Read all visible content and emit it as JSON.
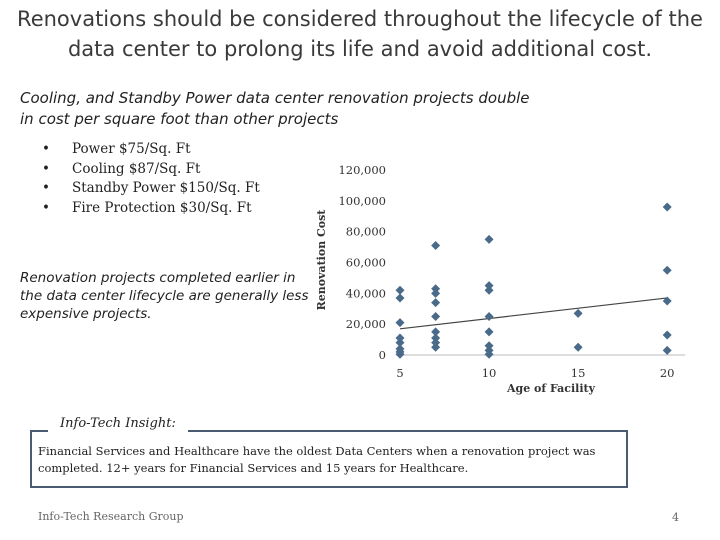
{
  "slide": {
    "title": "Renovations should be considered throughout the lifecycle of the data center to prolong its life and avoid additional cost.",
    "subtitle": "Cooling, and Standby Power data center renovation projects double in cost per square foot than other projects",
    "bullets": [
      "Power $75/Sq. Ft",
      "Cooling $87/Sq. Ft",
      "Standby Power $150/Sq. Ft",
      " Fire Protection $30/Sq. Ft"
    ],
    "note": "Renovation projects completed earlier in the data center lifecycle are generally less expensive projects.",
    "insight_label": "Info-Tech Insight:",
    "insight_text": "Financial Services and Healthcare have the oldest Data Centers when a renovation project was completed. 12+ years for Financial Services and 15 years for Healthcare.",
    "footer": "Info-Tech Research Group",
    "page_number": "4"
  },
  "chart_data": {
    "type": "scatter",
    "title": "",
    "xlabel": "Age of Facility",
    "ylabel": "Renovation Cost",
    "x_ticks": [
      5,
      10,
      15,
      20
    ],
    "y_ticks": [
      0,
      20000,
      40000,
      60000,
      80000,
      100000,
      120000
    ],
    "y_tick_labels": [
      "0",
      "20,000",
      "40,000",
      "60,000",
      "80,000",
      "100,000",
      "120,000"
    ],
    "xlim": [
      5,
      21
    ],
    "ylim": [
      0,
      120000
    ],
    "grid": false,
    "marker_color": "#4a6a8a",
    "trendline_color": "#444444",
    "points": [
      {
        "x": 5,
        "y": 42000
      },
      {
        "x": 5,
        "y": 37000
      },
      {
        "x": 5,
        "y": 21000
      },
      {
        "x": 5,
        "y": 11000
      },
      {
        "x": 5,
        "y": 8000
      },
      {
        "x": 5,
        "y": 4000
      },
      {
        "x": 5,
        "y": 2000
      },
      {
        "x": 5,
        "y": 500
      },
      {
        "x": 7,
        "y": 71000
      },
      {
        "x": 7,
        "y": 43000
      },
      {
        "x": 7,
        "y": 40000
      },
      {
        "x": 7,
        "y": 34000
      },
      {
        "x": 7,
        "y": 25000
      },
      {
        "x": 7,
        "y": 15000
      },
      {
        "x": 7,
        "y": 11000
      },
      {
        "x": 7,
        "y": 8000
      },
      {
        "x": 7,
        "y": 5000
      },
      {
        "x": 10,
        "y": 75000
      },
      {
        "x": 10,
        "y": 45000
      },
      {
        "x": 10,
        "y": 42000
      },
      {
        "x": 10,
        "y": 25000
      },
      {
        "x": 10,
        "y": 15000
      },
      {
        "x": 10,
        "y": 6000
      },
      {
        "x": 10,
        "y": 3000
      },
      {
        "x": 10,
        "y": 500
      },
      {
        "x": 15,
        "y": 27000
      },
      {
        "x": 15,
        "y": 5000
      },
      {
        "x": 20,
        "y": 96000
      },
      {
        "x": 20,
        "y": 55000
      },
      {
        "x": 20,
        "y": 35000
      },
      {
        "x": 20,
        "y": 13000
      },
      {
        "x": 20,
        "y": 3000
      }
    ],
    "trendline": {
      "x": [
        5,
        20
      ],
      "y": [
        17000,
        37000
      ]
    }
  }
}
